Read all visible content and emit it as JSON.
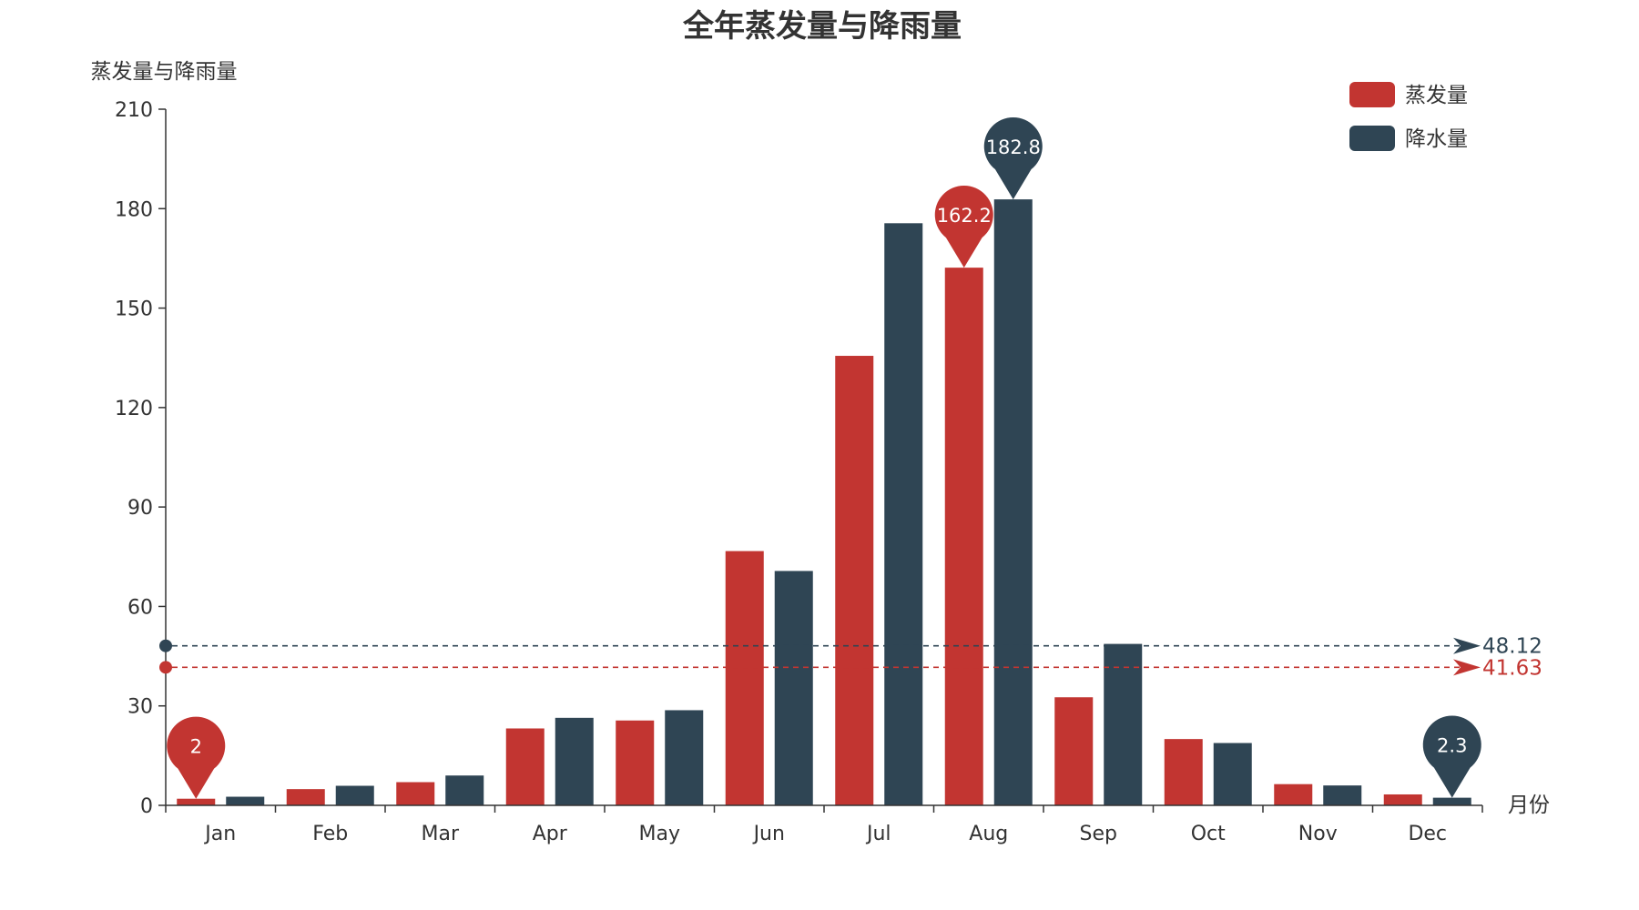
{
  "chart_data": {
    "type": "bar",
    "title": "全年蒸发量与降雨量",
    "ylabel": "蒸发量与降雨量",
    "xlabel": "月份",
    "categories": [
      "Jan",
      "Feb",
      "Mar",
      "Apr",
      "May",
      "Jun",
      "Jul",
      "Aug",
      "Sep",
      "Oct",
      "Nov",
      "Dec"
    ],
    "ylim": [
      0,
      210
    ],
    "yticks": [
      "0",
      "30",
      "60",
      "90",
      "120",
      "150",
      "180",
      "210"
    ],
    "grid": false,
    "legend_position": "top-right",
    "series": [
      {
        "name": "蒸发量",
        "color": "#c23531",
        "values": [
          2.0,
          4.9,
          7.0,
          23.2,
          25.6,
          76.7,
          135.6,
          162.2,
          32.6,
          20.0,
          6.4,
          3.3
        ],
        "max_label": "162.2",
        "min_label": "2",
        "average_label": "41.63",
        "average": 41.63
      },
      {
        "name": "降水量",
        "color": "#2f4554",
        "values": [
          2.6,
          5.9,
          9.0,
          26.4,
          28.7,
          70.7,
          175.6,
          182.8,
          48.7,
          18.8,
          6.0,
          2.3
        ],
        "max_label": "182.8",
        "min_label": "2.3",
        "average_label": "48.12",
        "average": 48.12
      }
    ]
  }
}
